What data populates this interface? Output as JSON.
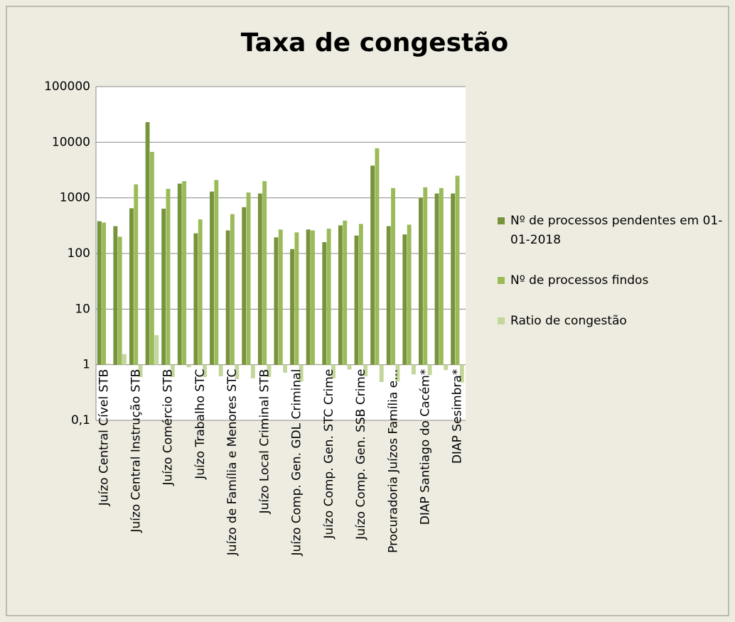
{
  "chart_data": {
    "type": "bar",
    "title": "Taxa de congestão",
    "log_scale": true,
    "grid": true,
    "legend": "right",
    "categories": [
      "Juízo Central Cível STB",
      null,
      "Juízo Central Instrução STB",
      null,
      "Juízo Comércio STB",
      null,
      "Juízo Trabalho STC",
      null,
      "Juízo de Família e Menores STC",
      null,
      "Juízo Local Criminal STB",
      null,
      "Juízo Comp. Gen. GDL Criminal",
      null,
      "Juízo Comp. Gen. STC Crime",
      null,
      "Juízo Comp. Gen. SSB Crime",
      null,
      "Procuradoria Juízos Família e...",
      null,
      "DIAP Santiago do Cacém*",
      null,
      "DIAP Sesimbra*"
    ],
    "series": [
      {
        "name": "Nº de processos pendentes em 01-01-2018",
        "color": "#77933c",
        "values": [
          380,
          310,
          650,
          23000,
          640,
          1800,
          230,
          1300,
          260,
          680,
          1200,
          195,
          120,
          270,
          160,
          320,
          210,
          3800,
          310,
          220,
          1000,
          1200,
          1200
        ]
      },
      {
        "name": "Nº de processos findos",
        "color": "#9bbb59",
        "values": [
          360,
          200,
          1750,
          6700,
          1450,
          2000,
          410,
          2100,
          510,
          1250,
          2000,
          270,
          240,
          260,
          280,
          390,
          340,
          7800,
          1500,
          330,
          1550,
          1500,
          2500
        ]
      },
      {
        "name": "Ratio de congestão",
        "color": "#c3d69b",
        "values": [
          1.05,
          1.55,
          0.6,
          3.4,
          0.6,
          0.9,
          0.6,
          0.62,
          0.55,
          0.57,
          0.6,
          0.72,
          0.5,
          1.04,
          0.57,
          0.82,
          0.62,
          0.49,
          0.5,
          0.67,
          0.65,
          0.8,
          0.48
        ]
      }
    ],
    "ylim": [
      0.1,
      100000
    ],
    "yticks": [
      {
        "value": 0.1,
        "label": "0,1"
      },
      1,
      10,
      100,
      1000,
      10000,
      100000
    ]
  }
}
